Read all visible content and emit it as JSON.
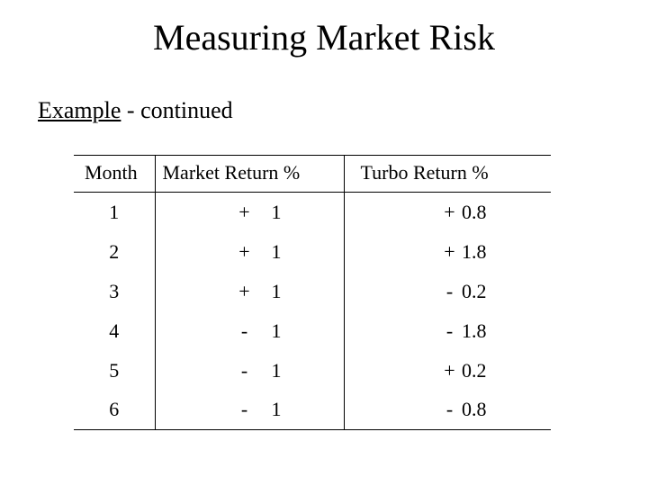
{
  "title": "Measuring Market Risk",
  "subtitle_underlined": "Example",
  "subtitle_rest": " - continued",
  "table": {
    "columns": [
      "Month",
      "Market Return %",
      "Turbo Return %"
    ],
    "rows": [
      {
        "month": "1",
        "market_sign": "+",
        "market_num": "1",
        "turbo_sign": "+",
        "turbo_num": "0.8"
      },
      {
        "month": "2",
        "market_sign": "+",
        "market_num": "1",
        "turbo_sign": "+",
        "turbo_num": "1.8"
      },
      {
        "month": "3",
        "market_sign": "+",
        "market_num": "1",
        "turbo_sign": "-",
        "turbo_num": "0.2"
      },
      {
        "month": "4",
        "market_sign": "-",
        "market_num": "1",
        "turbo_sign": "-",
        "turbo_num": "1.8"
      },
      {
        "month": "5",
        "market_sign": "-",
        "market_num": "1",
        "turbo_sign": "+",
        "turbo_num": "0.2"
      },
      {
        "month": "6",
        "market_sign": "-",
        "market_num": "1",
        "turbo_sign": "-",
        "turbo_num": "0.8"
      }
    ],
    "font_size_header": 22,
    "font_size_body": 22,
    "border_color": "#000000",
    "background_color": "#ffffff",
    "text_color": "#000000"
  }
}
